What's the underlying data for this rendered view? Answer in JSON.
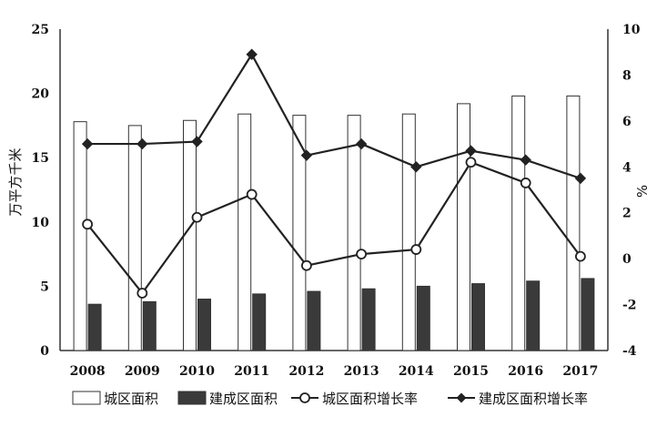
{
  "chart_data": {
    "type": "bar",
    "categories": [
      "2008",
      "2009",
      "2010",
      "2011",
      "2012",
      "2013",
      "2014",
      "2015",
      "2016",
      "2017"
    ],
    "y_left": {
      "label": "万平方千米",
      "min": 0,
      "max": 25,
      "ticks": [
        "0",
        "5",
        "10",
        "15",
        "20",
        "25"
      ]
    },
    "y_right": {
      "label": "%",
      "min": -4,
      "max": 10,
      "ticks": [
        "-4",
        "-2",
        "0",
        "2",
        "4",
        "6",
        "8",
        "10"
      ]
    },
    "series": [
      {
        "name": "城区面积",
        "kind": "bar",
        "axis": "left",
        "style": "hollow",
        "values": [
          17.8,
          17.5,
          17.9,
          18.4,
          18.3,
          18.3,
          18.4,
          19.2,
          19.8,
          19.8
        ]
      },
      {
        "name": "建成区面积",
        "kind": "bar",
        "axis": "left",
        "style": "filled",
        "values": [
          3.6,
          3.8,
          4.0,
          4.4,
          4.6,
          4.8,
          5.0,
          5.2,
          5.4,
          5.6
        ]
      },
      {
        "name": "城区面积增长率",
        "kind": "line",
        "axis": "right",
        "marker": "open-circle",
        "values": [
          1.5,
          -1.5,
          1.8,
          2.8,
          -0.3,
          0.2,
          0.4,
          4.2,
          3.3,
          0.1
        ]
      },
      {
        "name": "建成区面积增长率",
        "kind": "line",
        "axis": "right",
        "marker": "filled-diamond",
        "values": [
          5.0,
          5.0,
          5.1,
          8.9,
          4.5,
          5.0,
          4.0,
          4.7,
          4.3,
          3.5
        ]
      }
    ],
    "legend_position": "bottom",
    "grid": false
  },
  "colors": {
    "axis": "#333333",
    "bar_fill_dark": "#3a3a3a",
    "bar_stroke": "#333333",
    "line": "#222222"
  }
}
